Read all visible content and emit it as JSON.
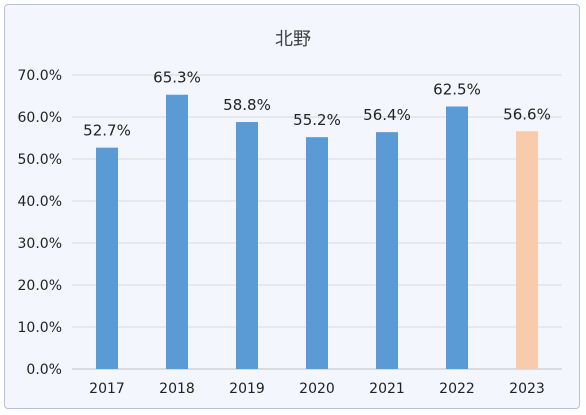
{
  "chart_data": {
    "type": "bar",
    "title": "北野",
    "categories": [
      "2017",
      "2018",
      "2019",
      "2020",
      "2021",
      "2022",
      "2023"
    ],
    "values": [
      52.7,
      65.3,
      58.8,
      55.2,
      56.4,
      62.5,
      56.6
    ],
    "data_labels": [
      "52.7%",
      "65.3%",
      "58.8%",
      "55.2%",
      "56.4%",
      "62.5%",
      "56.6%"
    ],
    "ylim": [
      0,
      70
    ],
    "yticks": [
      0,
      10,
      20,
      30,
      40,
      50,
      60,
      70
    ],
    "ytick_labels": [
      "0.0%",
      "10.0%",
      "20.0%",
      "30.0%",
      "40.0%",
      "50.0%",
      "60.0%",
      "70.0%"
    ],
    "xlabel": "",
    "ylabel": "",
    "grid": true,
    "legend": "none",
    "colors": {
      "bar": "#5b9bd5",
      "bar_highlight": "#f8cbad",
      "grid": "#d9d9d9",
      "axis": "#bfbfbf"
    },
    "highlight_index": 6
  }
}
